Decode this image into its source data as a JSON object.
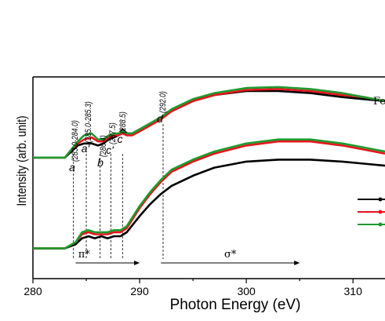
{
  "chart_data": {
    "type": "line",
    "title": "",
    "xlabel": "Photon Energy (eV)",
    "ylabel": "Intensity (arb. unit)",
    "xlim": [
      280,
      313
    ],
    "ylim": [
      0,
      1
    ],
    "x_ticks": [
      "280",
      "290",
      "300",
      "310"
    ],
    "grid": false,
    "legend_placement": "right (partially cropped)",
    "legend_entries": [
      {
        "color": "#000000"
      },
      {
        "color": "#e8141b"
      },
      {
        "color": "#1f9a2e"
      }
    ],
    "cropped_text": "Fe",
    "colors": {
      "black": "#000000",
      "red": "#e8141b",
      "green": "#1f9a2e"
    },
    "annotations": [
      {
        "letter": "a",
        "range": "(283.0-284.0)",
        "x": 283.8
      },
      {
        "letter": "a'",
        "range": "(285.0-285.3)",
        "x": 285.0
      },
      {
        "letter": "b",
        "range": "(286.4)",
        "x": 286.3
      },
      {
        "letter": "c'",
        "range": "(287.5)",
        "x": 287.3
      },
      {
        "letter": "c",
        "range": "(288.5)",
        "x": 288.4
      },
      {
        "letter": "d",
        "range": "(292.0)",
        "x": 292.2
      }
    ],
    "regions": [
      {
        "label": "π*",
        "from": 284.0,
        "to": 290.0
      },
      {
        "label": "σ*",
        "from": 292.0,
        "to": 305.0
      }
    ],
    "series": [
      {
        "group": "upper",
        "color": "#000000",
        "x": [
          280,
          283,
          283.6,
          284.2,
          284.8,
          285.5,
          286.1,
          286.6,
          287.1,
          287.6,
          288.0,
          288.4,
          288.8,
          289.3,
          290,
          291,
          292,
          293,
          295,
          297,
          300,
          303,
          306,
          309,
          311,
          313
        ],
        "y": [
          0.6,
          0.6,
          0.63,
          0.66,
          0.67,
          0.67,
          0.66,
          0.67,
          0.69,
          0.7,
          0.71,
          0.74,
          0.72,
          0.72,
          0.74,
          0.77,
          0.8,
          0.83,
          0.88,
          0.91,
          0.93,
          0.93,
          0.92,
          0.9,
          0.89,
          0.88
        ]
      },
      {
        "group": "upper",
        "color": "#e8141b",
        "x": [
          280,
          283,
          283.6,
          284.2,
          284.8,
          285.5,
          286.1,
          286.6,
          287.1,
          287.6,
          288.0,
          288.4,
          288.8,
          289.3,
          290,
          291,
          292,
          293,
          295,
          297,
          300,
          303,
          306,
          309,
          311,
          313
        ],
        "y": [
          0.6,
          0.6,
          0.64,
          0.67,
          0.69,
          0.7,
          0.68,
          0.68,
          0.7,
          0.71,
          0.71,
          0.72,
          0.71,
          0.71,
          0.73,
          0.76,
          0.79,
          0.83,
          0.88,
          0.91,
          0.935,
          0.94,
          0.93,
          0.91,
          0.9,
          0.88
        ]
      },
      {
        "group": "upper",
        "color": "#1f9a2e",
        "x": [
          280,
          283,
          283.6,
          284.2,
          284.8,
          285.5,
          286.1,
          286.6,
          287.1,
          287.6,
          288.0,
          288.4,
          288.8,
          289.3,
          290,
          291,
          292,
          293,
          295,
          297,
          300,
          303,
          306,
          309,
          311,
          313
        ],
        "y": [
          0.6,
          0.6,
          0.64,
          0.68,
          0.71,
          0.72,
          0.69,
          0.69,
          0.71,
          0.72,
          0.72,
          0.73,
          0.72,
          0.72,
          0.74,
          0.77,
          0.8,
          0.84,
          0.89,
          0.92,
          0.945,
          0.95,
          0.94,
          0.92,
          0.9,
          0.88
        ]
      },
      {
        "group": "lower",
        "color": "#000000",
        "x": [
          280,
          283,
          284,
          284.6,
          285.2,
          285.8,
          286.4,
          287,
          287.6,
          288.2,
          288.8,
          289.4,
          290,
          291,
          292,
          293,
          295,
          297,
          300,
          303,
          306,
          309,
          311,
          313
        ],
        "y": [
          0.15,
          0.15,
          0.17,
          0.2,
          0.21,
          0.2,
          0.21,
          0.2,
          0.21,
          0.21,
          0.23,
          0.27,
          0.31,
          0.37,
          0.42,
          0.46,
          0.51,
          0.55,
          0.58,
          0.59,
          0.59,
          0.58,
          0.57,
          0.56
        ]
      },
      {
        "group": "lower",
        "color": "#e8141b",
        "x": [
          280,
          283,
          284,
          284.6,
          285.2,
          285.8,
          286.4,
          287,
          287.6,
          288.2,
          288.8,
          289.4,
          290,
          291,
          292,
          293,
          295,
          297,
          300,
          303,
          306,
          309,
          311,
          313
        ],
        "y": [
          0.15,
          0.15,
          0.18,
          0.22,
          0.23,
          0.22,
          0.22,
          0.22,
          0.23,
          0.23,
          0.25,
          0.3,
          0.35,
          0.42,
          0.48,
          0.53,
          0.58,
          0.62,
          0.66,
          0.68,
          0.68,
          0.66,
          0.64,
          0.62
        ]
      },
      {
        "group": "lower",
        "color": "#1f9a2e",
        "x": [
          280,
          283,
          284,
          284.6,
          285.2,
          285.8,
          286.4,
          287,
          287.6,
          288.2,
          288.8,
          289.4,
          290,
          291,
          292,
          293,
          295,
          297,
          300,
          303,
          306,
          309,
          311,
          313
        ],
        "y": [
          0.15,
          0.15,
          0.18,
          0.23,
          0.24,
          0.23,
          0.23,
          0.23,
          0.24,
          0.24,
          0.26,
          0.31,
          0.36,
          0.43,
          0.49,
          0.54,
          0.59,
          0.63,
          0.67,
          0.69,
          0.69,
          0.67,
          0.65,
          0.63
        ]
      }
    ]
  }
}
